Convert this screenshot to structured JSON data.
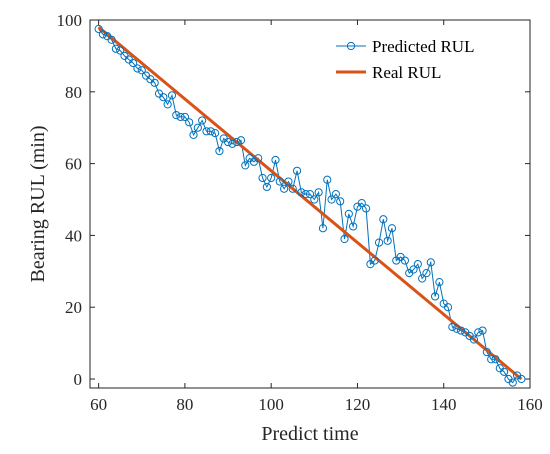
{
  "chart_data": {
    "type": "line",
    "title": "",
    "xlabel": "Predict time",
    "ylabel": "Bearing RUL (min)",
    "xlim": [
      58,
      160
    ],
    "ylim": [
      -2.5,
      100
    ],
    "xticks": [
      60,
      80,
      100,
      120,
      140,
      160
    ],
    "yticks": [
      0,
      20,
      40,
      60,
      80,
      100
    ],
    "grid": false,
    "box": true,
    "legend_position": "top-right",
    "series": [
      {
        "name": "Predicted RUL",
        "color": "#0072BD",
        "marker": "circle",
        "x": [
          60,
          61,
          62,
          63,
          64,
          65,
          66,
          67,
          68,
          69,
          70,
          71,
          72,
          73,
          74,
          75,
          76,
          77,
          78,
          79,
          80,
          81,
          82,
          83,
          84,
          85,
          86,
          87,
          88,
          89,
          90,
          91,
          92,
          93,
          94,
          95,
          96,
          97,
          98,
          99,
          100,
          101,
          102,
          103,
          104,
          105,
          106,
          107,
          108,
          109,
          110,
          111,
          112,
          113,
          114,
          115,
          116,
          117,
          118,
          119,
          120,
          121,
          122,
          123,
          124,
          125,
          126,
          127,
          128,
          129,
          130,
          131,
          132,
          133,
          134,
          135,
          136,
          137,
          138,
          139,
          140,
          141,
          142,
          143,
          144,
          145,
          146,
          147,
          148,
          149,
          150,
          151,
          152,
          153,
          154,
          155,
          156,
          157,
          158
        ],
        "y": [
          97.5,
          96,
          95.5,
          94.5,
          92,
          91.5,
          90,
          89,
          88,
          86.5,
          86,
          84.5,
          83.5,
          82.5,
          79.5,
          78.5,
          76.5,
          79,
          73.5,
          73,
          73,
          71.5,
          68,
          70,
          72,
          69,
          69,
          68.5,
          63.5,
          67,
          66,
          65.5,
          66,
          66.5,
          59.5,
          61.5,
          60.5,
          61.5,
          56,
          53.5,
          56,
          61,
          55,
          53,
          55,
          53,
          58,
          52,
          51.5,
          51.5,
          50,
          52,
          42,
          55.5,
          50,
          51.5,
          49.5,
          39,
          46,
          42.5,
          48,
          49,
          47.5,
          32,
          33,
          38,
          44.5,
          38.5,
          42,
          33,
          34,
          33,
          29.5,
          30.5,
          32,
          28,
          29.5,
          32.5,
          23,
          27,
          21,
          20,
          14.5,
          14,
          13.5,
          13,
          12,
          11,
          13,
          13.5,
          7.5,
          5.5,
          5.5,
          3,
          2,
          0,
          -1,
          1,
          0
        ]
      },
      {
        "name": "Real RUL",
        "color": "#D95319",
        "x": [
          60,
          158
        ],
        "y": [
          98,
          0
        ]
      }
    ]
  }
}
